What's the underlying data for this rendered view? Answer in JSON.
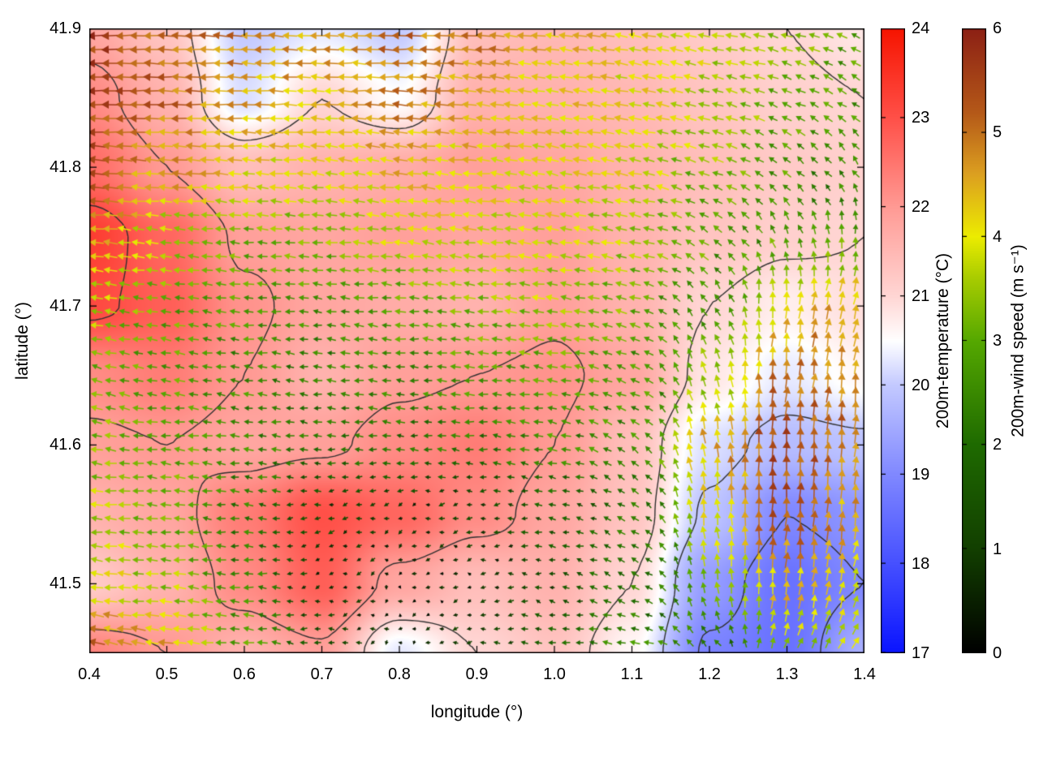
{
  "figure": {
    "background": "#ffffff"
  },
  "chart_data": {
    "type": "heatmap+quiver",
    "title": "",
    "xlabel": "longitude (°)",
    "ylabel": "latitude (°)",
    "x_range": [
      0.4,
      1.4
    ],
    "y_range": [
      41.45,
      41.9
    ],
    "x_ticks": {
      "values": [
        0.4,
        0.5,
        0.6,
        0.7,
        0.8,
        0.9,
        1.0,
        1.1,
        1.2,
        1.3,
        1.4
      ],
      "labels": [
        "0.4",
        "0.5",
        "0.6",
        "0.7",
        "0.8",
        "0.9",
        "1.0",
        "1.1",
        "1.2",
        "1.3",
        "1.4"
      ]
    },
    "y_ticks": {
      "values": [
        41.5,
        41.6,
        41.7,
        41.8,
        41.9
      ],
      "labels": [
        "41.5",
        "41.6",
        "41.7",
        "41.8",
        "41.9"
      ]
    },
    "grid_lon": [
      0.4,
      0.5,
      0.6,
      0.7,
      0.8,
      0.9,
      1.0,
      1.1,
      1.2,
      1.3,
      1.4
    ],
    "grid_lat": [
      41.9,
      41.85,
      41.8,
      41.75,
      41.7,
      41.65,
      41.6,
      41.55,
      41.5,
      41.45
    ],
    "temperature": [
      [
        21.8,
        21.3,
        20.0,
        20.3,
        20.0,
        21.4,
        21.5,
        21.4,
        21.2,
        21.0,
        20.8
      ],
      [
        22.2,
        21.6,
        20.2,
        21.0,
        20.5,
        21.6,
        21.6,
        21.5,
        21.3,
        21.1,
        21.0
      ],
      [
        22.6,
        22.0,
        21.4,
        21.6,
        21.7,
        21.9,
        21.8,
        21.6,
        21.4,
        21.2,
        21.1
      ],
      [
        23.3,
        22.7,
        21.9,
        21.8,
        21.9,
        21.8,
        21.9,
        21.6,
        21.3,
        21.1,
        21.0
      ],
      [
        23.1,
        22.8,
        22.1,
        21.8,
        21.7,
        21.6,
        21.9,
        21.6,
        21.0,
        20.7,
        20.9
      ],
      [
        22.2,
        22.4,
        22.0,
        21.6,
        21.9,
        22.0,
        22.1,
        21.8,
        20.8,
        20.3,
        20.6
      ],
      [
        21.9,
        22.0,
        21.8,
        21.9,
        22.2,
        22.4,
        22.0,
        21.4,
        20.2,
        19.8,
        19.9
      ],
      [
        21.6,
        21.8,
        22.4,
        23.0,
        22.7,
        22.2,
        21.8,
        21.3,
        19.9,
        19.0,
        19.2
      ],
      [
        21.2,
        21.6,
        22.2,
        22.8,
        21.8,
        21.4,
        21.6,
        21.0,
        19.3,
        18.6,
        19.0
      ],
      [
        22.3,
        22.0,
        21.6,
        21.9,
        20.3,
        21.0,
        21.3,
        20.6,
        18.9,
        18.6,
        19.6
      ]
    ],
    "wind_u": [
      [
        -5.5,
        -5.2,
        -4.8,
        -4.6,
        -5.0,
        -4.8,
        -4.3,
        -4.0,
        -3.8,
        -3.2,
        -2.6
      ],
      [
        -5.5,
        -5.0,
        -4.6,
        -4.3,
        -4.8,
        -4.5,
        -4.1,
        -4.0,
        -3.6,
        -2.9,
        -2.2
      ],
      [
        -5.2,
        -4.6,
        -4.1,
        -4.0,
        -4.2,
        -4.1,
        -4.0,
        -3.8,
        -3.1,
        -2.1,
        -1.6
      ],
      [
        -4.6,
        -3.6,
        -3.1,
        -3.3,
        -3.8,
        -4.0,
        -3.8,
        -3.5,
        -2.5,
        -1.1,
        0.4
      ],
      [
        -3.6,
        -3.0,
        -2.8,
        -2.6,
        -3.0,
        -3.2,
        -3.5,
        -3.0,
        -1.5,
        0.5,
        1.0
      ],
      [
        -3.0,
        -2.8,
        -2.5,
        -2.2,
        -2.5,
        -2.8,
        -3.0,
        -2.5,
        -1.0,
        0.4,
        0.6
      ],
      [
        -3.2,
        -3.0,
        -2.5,
        -2.0,
        -2.0,
        -2.2,
        -2.5,
        -2.0,
        -0.6,
        0.3,
        0.4
      ],
      [
        -3.6,
        -3.0,
        -2.2,
        -1.0,
        -0.7,
        -1.0,
        -1.5,
        -1.8,
        -0.4,
        0.3,
        0.6
      ],
      [
        -4.0,
        -3.5,
        -2.5,
        -0.8,
        -0.3,
        -0.6,
        -1.2,
        -2.0,
        -0.6,
        0.5,
        1.1
      ],
      [
        -5.0,
        -4.4,
        -3.0,
        -1.5,
        -0.4,
        -1.0,
        -2.0,
        -2.6,
        -1.5,
        1.1,
        2.1
      ]
    ],
    "wind_v": [
      [
        0.0,
        0.1,
        0.3,
        0.3,
        0.1,
        0.3,
        0.5,
        0.6,
        0.8,
        1.0,
        1.3
      ],
      [
        0.0,
        0.0,
        0.1,
        0.1,
        0.3,
        0.5,
        0.5,
        0.8,
        0.9,
        1.1,
        1.5
      ],
      [
        0.3,
        0.3,
        0.3,
        0.5,
        0.5,
        0.5,
        0.8,
        0.8,
        1.1,
        1.6,
        2.0
      ],
      [
        0.5,
        0.3,
        0.3,
        0.3,
        0.5,
        0.5,
        0.5,
        0.8,
        1.6,
        2.6,
        3.0
      ],
      [
        0.5,
        0.5,
        0.3,
        0.3,
        0.3,
        0.3,
        0.5,
        0.8,
        2.2,
        4.2,
        4.4
      ],
      [
        0.8,
        0.5,
        0.3,
        0.3,
        0.2,
        0.3,
        0.5,
        1.0,
        3.2,
        5.0,
        4.8
      ],
      [
        0.5,
        0.3,
        0.3,
        0.2,
        0.2,
        0.2,
        0.5,
        1.5,
        4.4,
        5.4,
        4.9
      ],
      [
        0.3,
        0.3,
        0.2,
        -0.3,
        -0.3,
        -0.2,
        0.3,
        1.0,
        4.0,
        5.3,
        4.4
      ],
      [
        0.5,
        0.3,
        0.2,
        -0.3,
        -0.2,
        -0.2,
        0.2,
        0.8,
        3.0,
        4.4,
        3.9
      ],
      [
        1.0,
        0.6,
        0.3,
        0.2,
        -0.3,
        -0.2,
        0.3,
        0.5,
        1.6,
        3.0,
        3.4
      ]
    ],
    "contour_levels": [
      19,
      20,
      21,
      22,
      23
    ],
    "contour_color": "#303030",
    "temperature_stops": [
      [
        17,
        "#0a14ff"
      ],
      [
        18,
        "#4650ff"
      ],
      [
        19,
        "#8088ff"
      ],
      [
        20,
        "#c3c9ff"
      ],
      [
        20.5,
        "#ffffff"
      ],
      [
        21,
        "#ffd6d4"
      ],
      [
        22,
        "#ff9a94"
      ],
      [
        23,
        "#ff5048"
      ],
      [
        24,
        "#f61400"
      ]
    ],
    "wind_stops": [
      [
        0,
        "#000000"
      ],
      [
        1,
        "#123f00"
      ],
      [
        2,
        "#1e6a00"
      ],
      [
        3,
        "#55a800"
      ],
      [
        3.6,
        "#a8cc00"
      ],
      [
        4,
        "#ecec00"
      ],
      [
        4.6,
        "#dca020"
      ],
      [
        5.2,
        "#b45818"
      ],
      [
        6,
        "#8c2014"
      ]
    ],
    "colorbars": [
      {
        "title": "200m-temperature (°C)",
        "min": 17,
        "max": 24,
        "tick_values": [
          17,
          18,
          19,
          20,
          21,
          22,
          23,
          24
        ],
        "tick_labels": [
          "17",
          "18",
          "19",
          "20",
          "21",
          "22",
          "23",
          "24"
        ]
      },
      {
        "title": "200m-wind speed (m s⁻¹)",
        "min": 0,
        "max": 6,
        "tick_values": [
          0,
          1,
          2,
          3,
          4,
          5,
          6
        ],
        "tick_labels": [
          "0",
          "1",
          "2",
          "3",
          "4",
          "5",
          "6"
        ]
      }
    ]
  }
}
